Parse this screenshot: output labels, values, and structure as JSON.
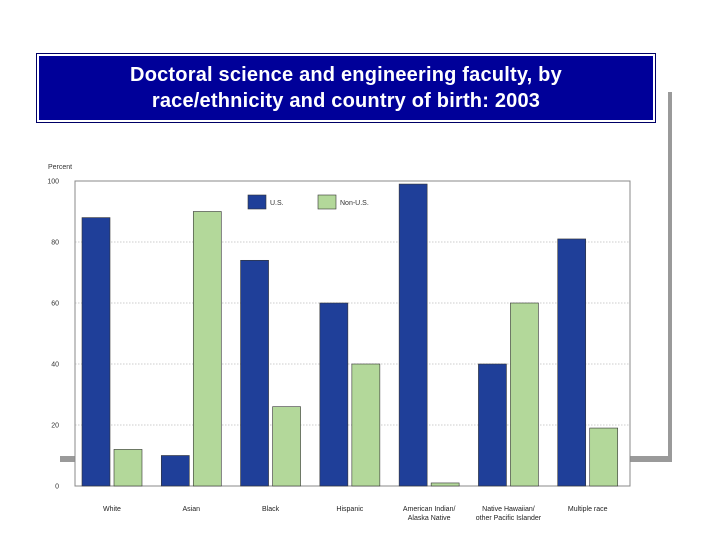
{
  "slide": {
    "title": "Doctoral science and engineering faculty, by race/ethnicity and country of birth: 2003"
  },
  "chart_data": {
    "type": "bar",
    "title": "Doctoral science and engineering faculty, by race/ethnicity and country of birth: 2003",
    "ylabel": "Percent",
    "xlabel": "",
    "ylim": [
      0,
      100
    ],
    "yticks": [
      0,
      20,
      40,
      60,
      80,
      100
    ],
    "grid": true,
    "legend_position": "top",
    "categories": [
      [
        "White"
      ],
      [
        "Asian"
      ],
      [
        "Black"
      ],
      [
        "Hispanic"
      ],
      [
        "American Indian/",
        "Alaska Native"
      ],
      [
        "Native Hawaiian/",
        "other Pacific Islander"
      ],
      [
        "Multiple race"
      ]
    ],
    "series": [
      {
        "name": "U.S.",
        "color": "#1f3f99",
        "values": [
          88,
          10,
          74,
          60,
          99,
          40,
          81
        ]
      },
      {
        "name": "Non-U.S.",
        "color": "#b3d89a",
        "values": [
          12,
          90,
          26,
          40,
          1,
          60,
          19
        ]
      }
    ]
  }
}
